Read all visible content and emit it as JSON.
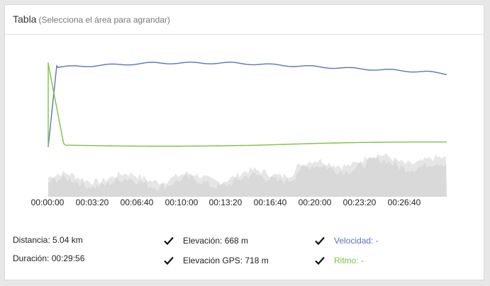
{
  "panel": {
    "title": "Tabla",
    "subtitle": "(Selecciona el área para agrandar)"
  },
  "chart": {
    "time_labels": [
      "00:00:00",
      "00:03:20",
      "00:06:40",
      "00:10:00",
      "00:13:20",
      "00:16:40",
      "00:20:00",
      "00:23:20",
      "00:26:40"
    ],
    "colors": {
      "speed_line": "#5b74b8",
      "pace_line": "#7dc142",
      "elevation_fill": "#d9d9d9",
      "elevation_gps_fill": "#e6e6e6"
    }
  },
  "stats": {
    "distance": "Distancia: 5.04 km",
    "duration": "Duración: 00:29:56"
  },
  "toggles": {
    "elevation": {
      "label": "Elevación: 668 m",
      "checked": true
    },
    "elevation_gps": {
      "label": "Elevación GPS: 718 m",
      "checked": true
    },
    "speed": {
      "label": "Velocidad: -",
      "checked": true
    },
    "pace": {
      "label": "Ritmo: -",
      "checked": true
    }
  }
}
